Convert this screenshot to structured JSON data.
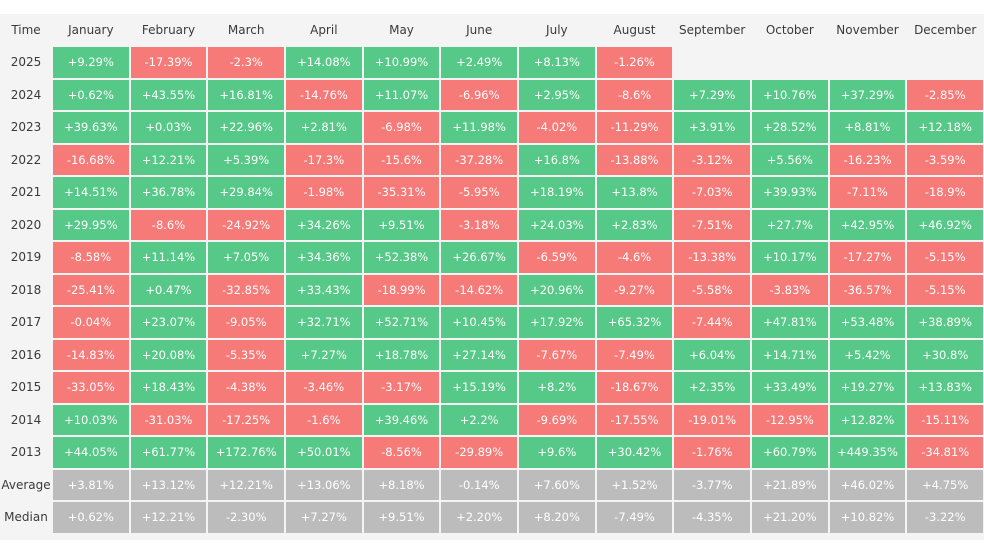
{
  "chart_data": {
    "type": "table",
    "corner_label": "Time",
    "columns": [
      "January",
      "February",
      "March",
      "April",
      "May",
      "June",
      "July",
      "August",
      "September",
      "October",
      "November",
      "December"
    ],
    "rows": [
      {
        "label": "2025",
        "values": [
          "+9.29%",
          "-17.39%",
          "-2.3%",
          "+14.08%",
          "+10.99%",
          "+2.49%",
          "+8.13%",
          "-1.26%",
          null,
          null,
          null,
          null
        ]
      },
      {
        "label": "2024",
        "values": [
          "+0.62%",
          "+43.55%",
          "+16.81%",
          "-14.76%",
          "+11.07%",
          "-6.96%",
          "+2.95%",
          "-8.6%",
          "+7.29%",
          "+10.76%",
          "+37.29%",
          "-2.85%"
        ]
      },
      {
        "label": "2023",
        "values": [
          "+39.63%",
          "+0.03%",
          "+22.96%",
          "+2.81%",
          "-6.98%",
          "+11.98%",
          "-4.02%",
          "-11.29%",
          "+3.91%",
          "+28.52%",
          "+8.81%",
          "+12.18%"
        ]
      },
      {
        "label": "2022",
        "values": [
          "-16.68%",
          "+12.21%",
          "+5.39%",
          "-17.3%",
          "-15.6%",
          "-37.28%",
          "+16.8%",
          "-13.88%",
          "-3.12%",
          "+5.56%",
          "-16.23%",
          "-3.59%"
        ]
      },
      {
        "label": "2021",
        "values": [
          "+14.51%",
          "+36.78%",
          "+29.84%",
          "-1.98%",
          "-35.31%",
          "-5.95%",
          "+18.19%",
          "+13.8%",
          "-7.03%",
          "+39.93%",
          "-7.11%",
          "-18.9%"
        ]
      },
      {
        "label": "2020",
        "values": [
          "+29.95%",
          "-8.6%",
          "-24.92%",
          "+34.26%",
          "+9.51%",
          "-3.18%",
          "+24.03%",
          "+2.83%",
          "-7.51%",
          "+27.7%",
          "+42.95%",
          "+46.92%"
        ]
      },
      {
        "label": "2019",
        "values": [
          "-8.58%",
          "+11.14%",
          "+7.05%",
          "+34.36%",
          "+52.38%",
          "+26.67%",
          "-6.59%",
          "-4.6%",
          "-13.38%",
          "+10.17%",
          "-17.27%",
          "-5.15%"
        ]
      },
      {
        "label": "2018",
        "values": [
          "-25.41%",
          "+0.47%",
          "-32.85%",
          "+33.43%",
          "-18.99%",
          "-14.62%",
          "+20.96%",
          "-9.27%",
          "-5.58%",
          "-3.83%",
          "-36.57%",
          "-5.15%"
        ]
      },
      {
        "label": "2017",
        "values": [
          "-0.04%",
          "+23.07%",
          "-9.05%",
          "+32.71%",
          "+52.71%",
          "+10.45%",
          "+17.92%",
          "+65.32%",
          "-7.44%",
          "+47.81%",
          "+53.48%",
          "+38.89%"
        ]
      },
      {
        "label": "2016",
        "values": [
          "-14.83%",
          "+20.08%",
          "-5.35%",
          "+7.27%",
          "+18.78%",
          "+27.14%",
          "-7.67%",
          "-7.49%",
          "+6.04%",
          "+14.71%",
          "+5.42%",
          "+30.8%"
        ]
      },
      {
        "label": "2015",
        "values": [
          "-33.05%",
          "+18.43%",
          "-4.38%",
          "-3.46%",
          "-3.17%",
          "+15.19%",
          "+8.2%",
          "-18.67%",
          "+2.35%",
          "+33.49%",
          "+19.27%",
          "+13.83%"
        ]
      },
      {
        "label": "2014",
        "values": [
          "+10.03%",
          "-31.03%",
          "-17.25%",
          "-1.6%",
          "+39.46%",
          "+2.2%",
          "-9.69%",
          "-17.55%",
          "-19.01%",
          "-12.95%",
          "+12.82%",
          "-15.11%"
        ]
      },
      {
        "label": "2013",
        "values": [
          "+44.05%",
          "+61.77%",
          "+172.76%",
          "+50.01%",
          "-8.56%",
          "-29.89%",
          "+9.6%",
          "+30.42%",
          "-1.76%",
          "+60.79%",
          "+449.35%",
          "-34.81%"
        ]
      }
    ],
    "summary_rows": [
      {
        "label": "Average",
        "values": [
          "+3.81%",
          "+13.12%",
          "+12.21%",
          "+13.06%",
          "+8.18%",
          "-0.14%",
          "+7.60%",
          "+1.52%",
          "-3.77%",
          "+21.89%",
          "+46.02%",
          "+4.75%"
        ]
      },
      {
        "label": "Median",
        "values": [
          "+0.62%",
          "+12.21%",
          "-2.30%",
          "+7.27%",
          "+9.51%",
          "+2.20%",
          "+8.20%",
          "-7.49%",
          "-4.35%",
          "+21.20%",
          "+10.82%",
          "-3.22%"
        ]
      }
    ],
    "colors": {
      "positive": "#56c887",
      "negative": "#f57a78",
      "summary": "#bcbcbc",
      "background": "#f4f4f4",
      "text": "#3a3a3a"
    }
  }
}
